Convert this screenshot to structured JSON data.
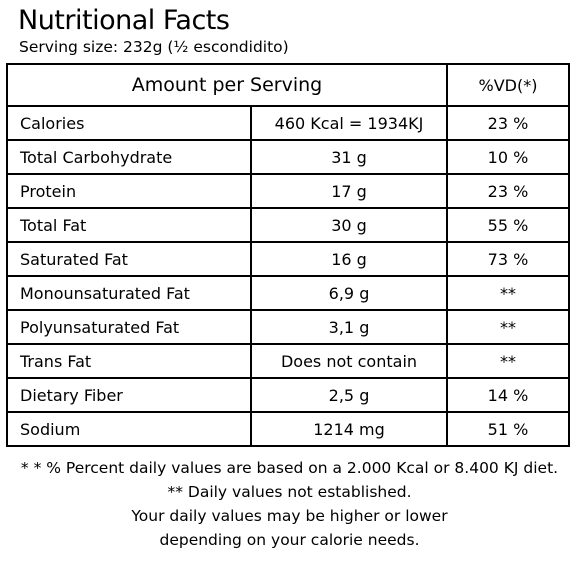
{
  "header": {
    "title": "Nutritional Facts",
    "serving": "Serving size: 232g (½ escondidito)"
  },
  "table": {
    "col_amount": "Amount per Serving",
    "col_vd": "%VD(*)",
    "rows": [
      {
        "name": "Calories",
        "amount": "460 Kcal = 1934KJ",
        "vd": "23 %"
      },
      {
        "name": "Total Carbohydrate",
        "amount": "31 g",
        "vd": "10 %"
      },
      {
        "name": "Protein",
        "amount": "17 g",
        "vd": "23 %"
      },
      {
        "name": "Total Fat",
        "amount": "30 g",
        "vd": "55 %"
      },
      {
        "name": "Saturated Fat",
        "amount": "16 g",
        "vd": "73 %"
      },
      {
        "name": "Monounsaturated Fat",
        "amount": "6,9 g",
        "vd": "**"
      },
      {
        "name": "Polyunsaturated Fat",
        "amount": "3,1 g",
        "vd": "**"
      },
      {
        "name": "Trans Fat",
        "amount": "Does not contain",
        "vd": "**"
      },
      {
        "name": "Dietary Fiber",
        "amount": "2,5 g",
        "vd": "14 %"
      },
      {
        "name": "Sodium",
        "amount": "1214 mg",
        "vd": "51 %"
      }
    ]
  },
  "footnotes": [
    "* * % Percent daily values are based on a 2.000 Kcal or 8.400 KJ diet.",
    "** Daily values not established.",
    "Your daily values may be higher or lower",
    "depending on your calorie needs."
  ]
}
